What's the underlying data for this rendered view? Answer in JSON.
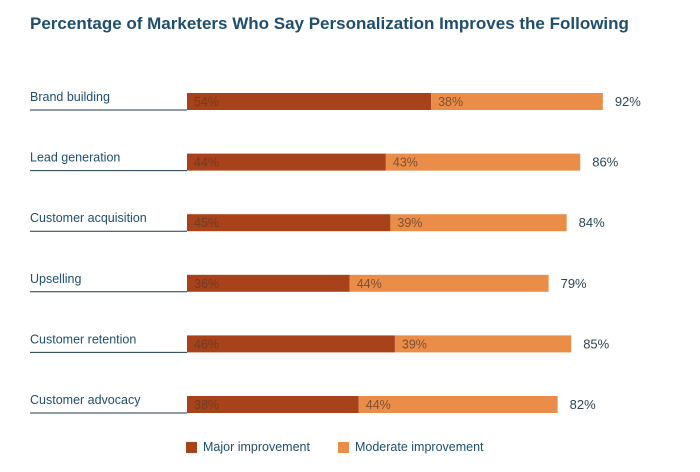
{
  "chart_data": {
    "type": "bar",
    "orientation": "horizontal",
    "stacked": true,
    "title": "Percentage of Marketers Who Say Personalization Improves the Following",
    "categories": [
      "Brand building",
      "Lead generation",
      "Customer acquisition",
      "Upselling",
      "Customer retention",
      "Customer advocacy"
    ],
    "series": [
      {
        "name": "Major improvement",
        "values": [
          54,
          44,
          45,
          36,
          46,
          38
        ],
        "labels": [
          "54%",
          "44%",
          "45%",
          "36%",
          "46%",
          "38%"
        ],
        "color": "#a8421a"
      },
      {
        "name": "Moderate improvement",
        "values": [
          38,
          43,
          39,
          44,
          39,
          44
        ],
        "labels": [
          "38%",
          "43%",
          "39%",
          "44%",
          "39%",
          "44%"
        ],
        "color": "#ea8d48"
      }
    ],
    "totals": [
      92,
      86,
      84,
      79,
      85,
      82
    ],
    "total_labels": [
      "92%",
      "86%",
      "84%",
      "79%",
      "85%",
      "82%"
    ],
    "xlim": [
      0,
      100
    ],
    "grid": false,
    "legend_position": "bottom"
  }
}
